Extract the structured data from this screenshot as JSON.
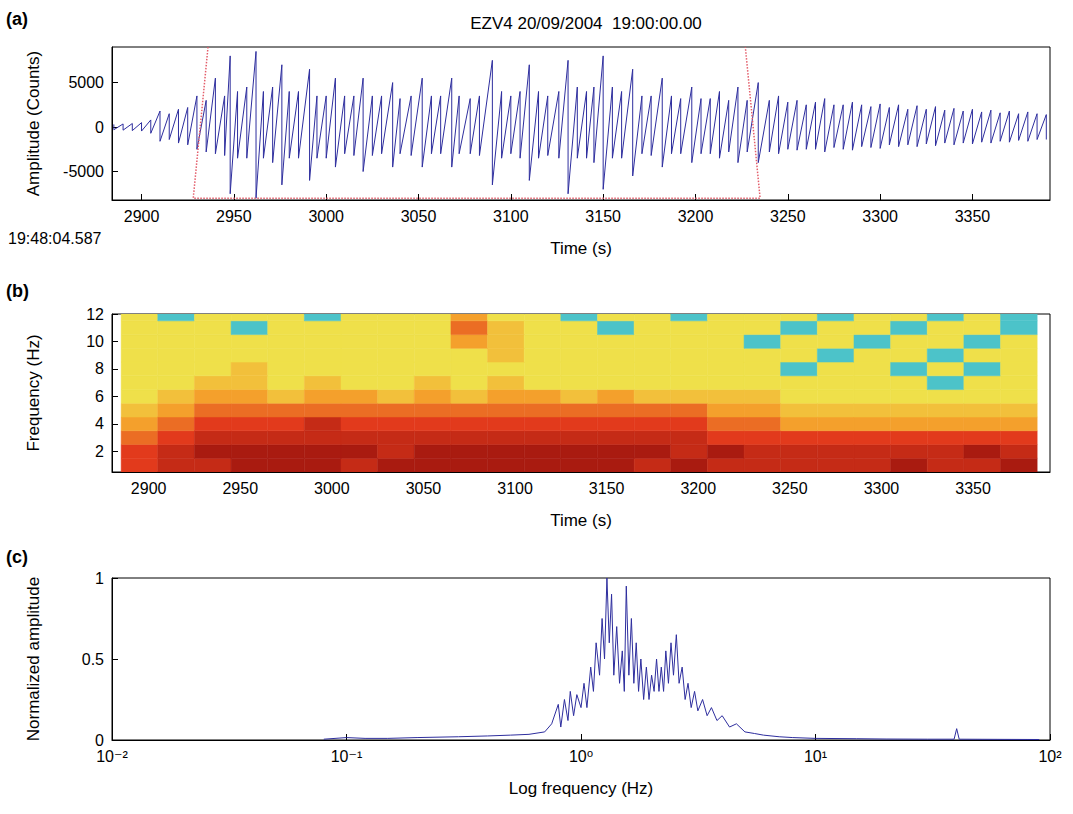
{
  "chart_data": [
    {
      "type": "line",
      "panel": "(a)",
      "title": "EZV4 20/09/2004  19:00:00.00",
      "xlabel": "Time (s)",
      "ylabel": "Amplitude (Counts)",
      "annotations": [
        "19:48:04.587"
      ],
      "xlim": [
        2884,
        3392
      ],
      "xticks": [
        2900,
        2950,
        3000,
        3050,
        3100,
        3150,
        3200,
        3250,
        3300,
        3350
      ],
      "ylim": [
        -8200,
        9000
      ],
      "yticks": [
        -5000,
        0,
        5000
      ],
      "grid": false,
      "series": [
        {
          "type": "line",
          "color": "#2e2e9e",
          "line_style": "solid",
          "values": [
            [
              2885,
              300,
              -300
            ],
            [
              2890,
              350,
              -350
            ],
            [
              2895,
              400,
              -400
            ],
            [
              2900,
              500,
              -450
            ],
            [
              2905,
              800,
              -700
            ],
            [
              2910,
              1800,
              -1600
            ],
            [
              2915,
              1500,
              -1400
            ],
            [
              2920,
              2000,
              -1800
            ],
            [
              2925,
              2200,
              -2000
            ],
            [
              2930,
              3500,
              -2500
            ],
            [
              2935,
              3000,
              -2800
            ],
            [
              2940,
              5500,
              -3000
            ],
            [
              2945,
              3500,
              -3200
            ],
            [
              2948,
              8000,
              -7500
            ],
            [
              2952,
              4000,
              -3500
            ],
            [
              2957,
              4500,
              -3500
            ],
            [
              2962,
              8500,
              -8000
            ],
            [
              2966,
              4000,
              -3500
            ],
            [
              2971,
              4500,
              -4000
            ],
            [
              2976,
              7000,
              -6500
            ],
            [
              2980,
              4000,
              -3500
            ],
            [
              2985,
              4000,
              -3500
            ],
            [
              2991,
              6500,
              -6000
            ],
            [
              2995,
              3500,
              -3500
            ],
            [
              3000,
              3500,
              -3500
            ],
            [
              3005,
              5500,
              -4500
            ],
            [
              3010,
              3500,
              -3000
            ],
            [
              3015,
              3500,
              -3200
            ],
            [
              3020,
              5500,
              -5000
            ],
            [
              3025,
              3500,
              -3200
            ],
            [
              3030,
              3500,
              -3000
            ],
            [
              3036,
              5000,
              -4500
            ],
            [
              3040,
              3200,
              -3000
            ],
            [
              3046,
              3500,
              -3200
            ],
            [
              3052,
              5500,
              -4500
            ],
            [
              3057,
              3500,
              -3000
            ],
            [
              3062,
              3500,
              -3000
            ],
            [
              3068,
              5500,
              -4500
            ],
            [
              3072,
              3500,
              -3000
            ],
            [
              3078,
              3200,
              -3000
            ],
            [
              3083,
              3500,
              -3200
            ],
            [
              3090,
              7500,
              -6500
            ],
            [
              3095,
              4000,
              -3500
            ],
            [
              3100,
              3500,
              -3000
            ],
            [
              3105,
              4000,
              -3500
            ],
            [
              3110,
              7000,
              -6000
            ],
            [
              3115,
              4000,
              -3500
            ],
            [
              3120,
              3500,
              -3200
            ],
            [
              3126,
              4000,
              -3500
            ],
            [
              3131,
              7500,
              -7500
            ],
            [
              3136,
              4500,
              -3500
            ],
            [
              3141,
              4000,
              -3500
            ],
            [
              3145,
              4500,
              -4000
            ],
            [
              3150,
              8000,
              -7000
            ],
            [
              3155,
              4500,
              -3500
            ],
            [
              3160,
              4000,
              -3500
            ],
            [
              3166,
              6500,
              -5500
            ],
            [
              3171,
              3500,
              -3000
            ],
            [
              3176,
              3500,
              -3200
            ],
            [
              3182,
              5500,
              -4500
            ],
            [
              3187,
              3500,
              -3000
            ],
            [
              3192,
              3200,
              -3000
            ],
            [
              3198,
              4500,
              -4000
            ],
            [
              3203,
              3200,
              -3000
            ],
            [
              3208,
              3200,
              -3000
            ],
            [
              3213,
              4000,
              -3500
            ],
            [
              3218,
              3000,
              -2800
            ],
            [
              3223,
              4500,
              -4000
            ],
            [
              3228,
              3000,
              -2800
            ],
            [
              3234,
              5000,
              -4000
            ],
            [
              3240,
              3000,
              -2800
            ],
            [
              3245,
              3500,
              -3000
            ],
            [
              3250,
              2800,
              -2500
            ],
            [
              3255,
              3000,
              -2600
            ],
            [
              3260,
              2500,
              -2500
            ],
            [
              3265,
              2800,
              -2500
            ],
            [
              3270,
              3200,
              -2800
            ],
            [
              3275,
              2500,
              -2300
            ],
            [
              3280,
              2500,
              -2500
            ],
            [
              3285,
              2800,
              -2600
            ],
            [
              3290,
              2500,
              -2200
            ],
            [
              3295,
              2300,
              -2300
            ],
            [
              3300,
              2600,
              -2400
            ],
            [
              3305,
              2200,
              -2000
            ],
            [
              3310,
              2500,
              -2200
            ],
            [
              3315,
              2000,
              -2000
            ],
            [
              3320,
              2400,
              -2200
            ],
            [
              3325,
              2000,
              -1900
            ],
            [
              3330,
              2300,
              -2100
            ],
            [
              3335,
              1900,
              -1800
            ],
            [
              3340,
              2100,
              -2000
            ],
            [
              3345,
              1800,
              -1800
            ],
            [
              3350,
              2000,
              -1900
            ],
            [
              3355,
              1700,
              -1700
            ],
            [
              3360,
              1900,
              -1800
            ],
            [
              3365,
              1600,
              -1600
            ],
            [
              3370,
              1800,
              -1700
            ],
            [
              3375,
              1500,
              -1500
            ],
            [
              3380,
              1700,
              -1600
            ],
            [
              3385,
              1500,
              -1400
            ],
            [
              3390,
              1400,
              -1400
            ]
          ]
        },
        {
          "type": "line",
          "color": "#e35d6a",
          "line_style": "dotted",
          "values": [
            [
              2936,
              9000
            ],
            [
              2928,
              -8000
            ],
            [
              3235,
              -8000
            ],
            [
              3227,
              9000
            ]
          ]
        }
      ]
    },
    {
      "type": "heatmap",
      "panel": "(b)",
      "xlabel": "Time (s)",
      "ylabel": "Frequency (Hz)",
      "xlim": [
        2880,
        3392
      ],
      "xticks": [
        2900,
        2950,
        3000,
        3050,
        3100,
        3150,
        3200,
        3250,
        3300,
        3350
      ],
      "ylim": [
        0.5,
        12
      ],
      "yticks": [
        2,
        4,
        6,
        8,
        10,
        12
      ],
      "grid": false,
      "time_bins": [
        2885,
        2905,
        2925,
        2945,
        2965,
        2985,
        3005,
        3025,
        3045,
        3065,
        3085,
        3105,
        3125,
        3145,
        3165,
        3185,
        3205,
        3225,
        3245,
        3265,
        3285,
        3305,
        3325,
        3345,
        3365,
        3385
      ],
      "freq_bins": [
        0.5,
        1.5,
        2.5,
        3.5,
        4.5,
        5.5,
        6.5,
        7.5,
        8.5,
        9.5,
        10.5,
        11.5,
        12
      ],
      "power_range": [
        0,
        10
      ],
      "power": [
        [
          7,
          8,
          8,
          9,
          9,
          9,
          8,
          9,
          9,
          9,
          9,
          9,
          9,
          9,
          8,
          9,
          8,
          8,
          8,
          8,
          8,
          9,
          8,
          8,
          9
        ],
        [
          7,
          8,
          9,
          9,
          9,
          9,
          9,
          8,
          9,
          9,
          9,
          9,
          9,
          9,
          9,
          8,
          9,
          8,
          8,
          8,
          8,
          8,
          8,
          9,
          8
        ],
        [
          6,
          7,
          8,
          8,
          8,
          8,
          8,
          8,
          8,
          8,
          8,
          8,
          8,
          8,
          8,
          8,
          7,
          7,
          7,
          7,
          7,
          7,
          7,
          7,
          7
        ],
        [
          5,
          6,
          7,
          7,
          7,
          8,
          7,
          7,
          7,
          7,
          7,
          7,
          7,
          7,
          7,
          7,
          6,
          6,
          5,
          5,
          5,
          5,
          5,
          5,
          5
        ],
        [
          4,
          5,
          6,
          6,
          6,
          6,
          6,
          6,
          6,
          6,
          6,
          6,
          6,
          6,
          6,
          6,
          5,
          5,
          4,
          4,
          4,
          4,
          4,
          4,
          4
        ],
        [
          3,
          4,
          5,
          5,
          4,
          5,
          5,
          4,
          5,
          4,
          5,
          5,
          4,
          5,
          4,
          4,
          4,
          4,
          3,
          3,
          3,
          3,
          3,
          3,
          3
        ],
        [
          3,
          3,
          4,
          4,
          3,
          4,
          3,
          3,
          4,
          3,
          4,
          3,
          3,
          3,
          3,
          3,
          3,
          3,
          3,
          3,
          3,
          3,
          2,
          3,
          3
        ],
        [
          3,
          3,
          3,
          4,
          3,
          3,
          3,
          3,
          3,
          3,
          3,
          3,
          3,
          3,
          3,
          3,
          3,
          3,
          2,
          3,
          3,
          2,
          3,
          2,
          3
        ],
        [
          3,
          3,
          3,
          3,
          3,
          3,
          3,
          3,
          3,
          3,
          4,
          3,
          3,
          3,
          3,
          3,
          3,
          3,
          3,
          2,
          3,
          3,
          2,
          3,
          3
        ],
        [
          3,
          3,
          3,
          3,
          3,
          3,
          3,
          3,
          3,
          5,
          4,
          3,
          3,
          3,
          3,
          3,
          3,
          2,
          3,
          3,
          2,
          3,
          3,
          2,
          3
        ],
        [
          3,
          3,
          3,
          2,
          3,
          3,
          3,
          3,
          3,
          6,
          4,
          3,
          3,
          2,
          3,
          3,
          3,
          3,
          2,
          3,
          3,
          2,
          3,
          3,
          2
        ],
        [
          3,
          2,
          3,
          3,
          3,
          2,
          3,
          3,
          3,
          5,
          3,
          3,
          2,
          3,
          3,
          2,
          3,
          3,
          3,
          2,
          3,
          3,
          2,
          3,
          2
        ]
      ]
    },
    {
      "type": "line",
      "panel": "(c)",
      "xlabel": "Log frequency (Hz)",
      "ylabel": "Normalized amplitude",
      "log": "x",
      "color": "#2e2e9e",
      "grid": false,
      "xlim": [
        0.01,
        100
      ],
      "xticks": [
        {
          "value": 0.01,
          "label": "10⁻²"
        },
        {
          "value": 0.1,
          "label": "10⁻¹"
        },
        {
          "value": 1,
          "label": "10⁰"
        },
        {
          "value": 10,
          "label": "10¹"
        },
        {
          "value": 100,
          "label": "10²"
        }
      ],
      "ylim": [
        0,
        1
      ],
      "yticks": [
        0,
        0.5,
        1
      ],
      "x": [
        0.08,
        0.1,
        0.12,
        0.15,
        0.2,
        0.3,
        0.4,
        0.5,
        0.6,
        0.7,
        0.75,
        0.8,
        0.82,
        0.85,
        0.88,
        0.9,
        0.93,
        0.96,
        1.0,
        1.03,
        1.06,
        1.1,
        1.13,
        1.16,
        1.2,
        1.23,
        1.26,
        1.29,
        1.32,
        1.35,
        1.38,
        1.42,
        1.46,
        1.5,
        1.53,
        1.56,
        1.6,
        1.64,
        1.68,
        1.72,
        1.76,
        1.8,
        1.85,
        1.9,
        1.95,
        2.0,
        2.05,
        2.1,
        2.15,
        2.2,
        2.25,
        2.3,
        2.36,
        2.42,
        2.48,
        2.55,
        2.62,
        2.7,
        2.78,
        2.86,
        2.95,
        3.05,
        3.15,
        3.3,
        3.45,
        3.6,
        3.8,
        4.0,
        4.3,
        4.6,
        5.0,
        5.5,
        6,
        7,
        8,
        10,
        15,
        20,
        30,
        39,
        40,
        41,
        60,
        90
      ],
      "values": [
        0.005,
        0.015,
        0.01,
        0.01,
        0.015,
        0.02,
        0.025,
        0.03,
        0.035,
        0.05,
        0.1,
        0.22,
        0.08,
        0.25,
        0.12,
        0.3,
        0.15,
        0.28,
        0.2,
        0.35,
        0.2,
        0.45,
        0.3,
        0.6,
        0.4,
        0.75,
        0.5,
        1.0,
        0.6,
        0.9,
        0.4,
        0.7,
        0.35,
        0.55,
        0.3,
        0.95,
        0.4,
        0.75,
        0.35,
        0.6,
        0.3,
        0.5,
        0.25,
        0.45,
        0.25,
        0.4,
        0.3,
        0.5,
        0.3,
        0.45,
        0.3,
        0.55,
        0.35,
        0.6,
        0.4,
        0.65,
        0.35,
        0.45,
        0.25,
        0.35,
        0.2,
        0.3,
        0.18,
        0.25,
        0.15,
        0.2,
        0.12,
        0.15,
        0.08,
        0.1,
        0.05,
        0.04,
        0.03,
        0.02,
        0.015,
        0.01,
        0.008,
        0.006,
        0.005,
        0.005,
        0.07,
        0.005,
        0.004,
        0.003
      ]
    }
  ]
}
